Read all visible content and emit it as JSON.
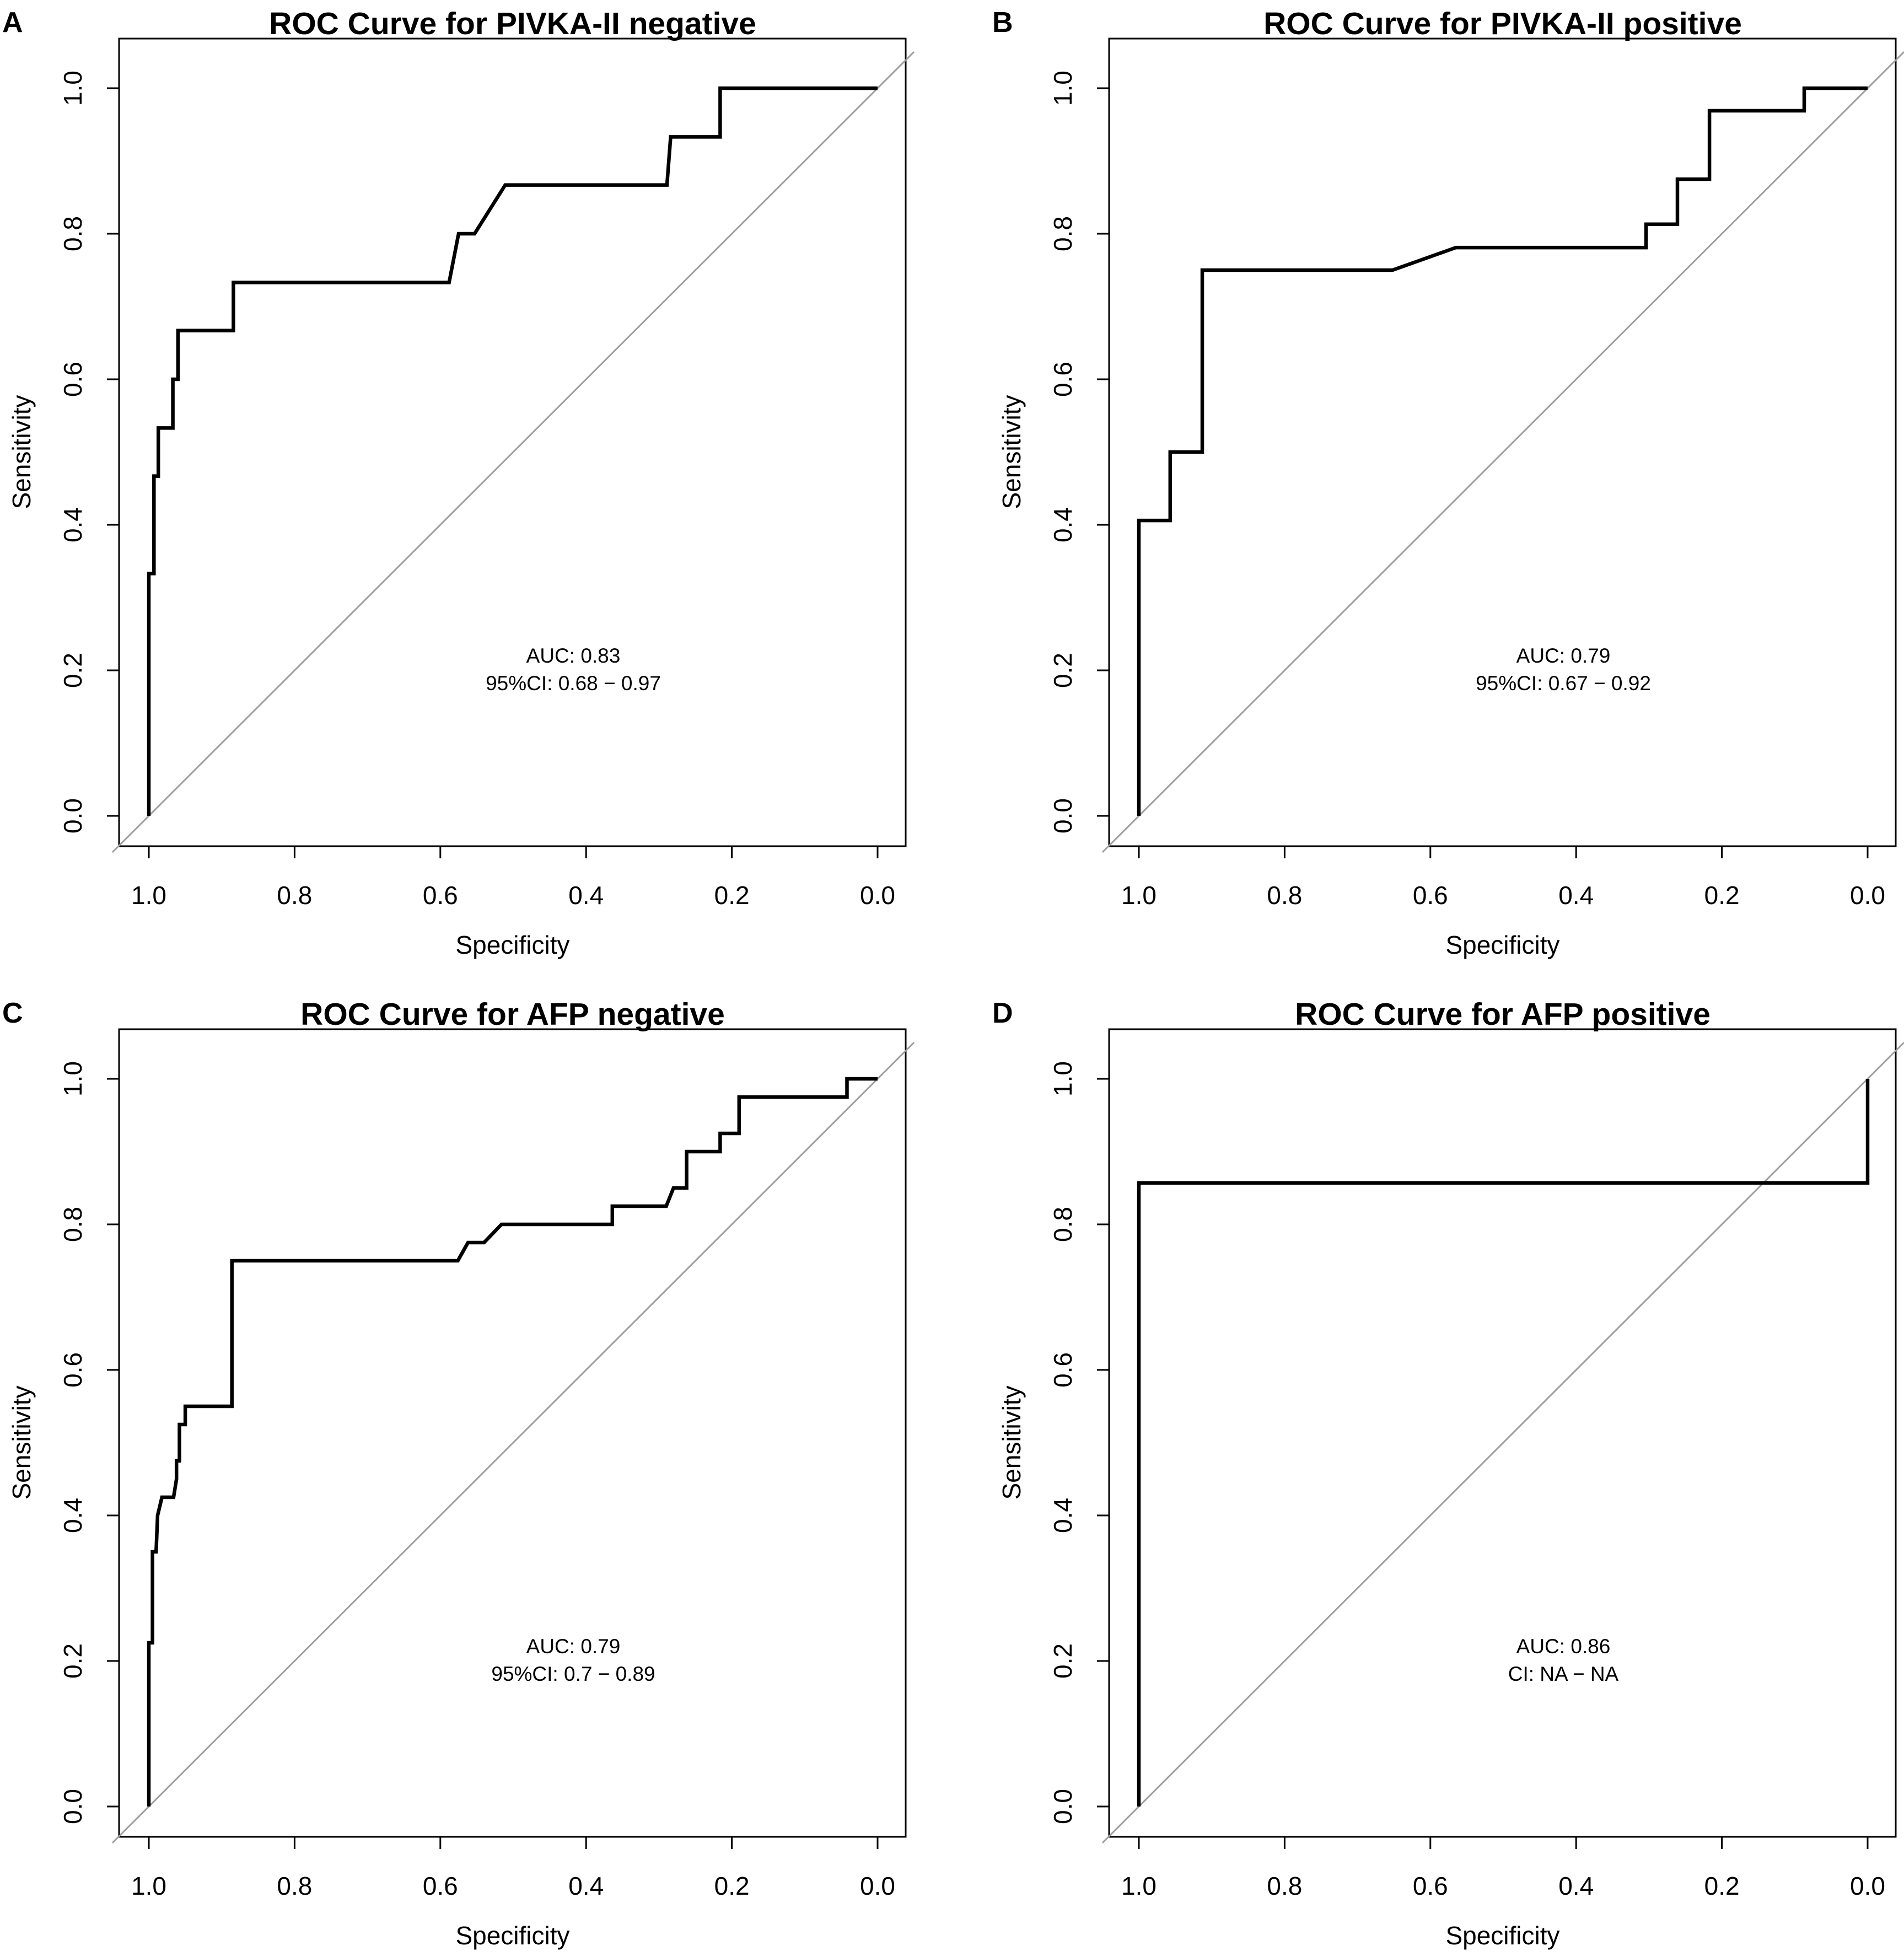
{
  "figure": {
    "panels": [
      {
        "letter": "A",
        "annotation": {
          "auc": "AUC: 0.83",
          "ci": "95%CI: 0.68 − 0.97"
        }
      },
      {
        "letter": "B",
        "annotation": {
          "auc": "AUC: 0.79",
          "ci": "95%CI: 0.67 − 0.92"
        }
      },
      {
        "letter": "C",
        "annotation": {
          "auc": "AUC: 0.79",
          "ci": "95%CI: 0.7 − 0.89"
        }
      },
      {
        "letter": "D",
        "annotation": {
          "auc": "AUC: 0.86",
          "ci": "CI: NA − NA"
        }
      }
    ]
  },
  "chart_data": [
    {
      "type": "line",
      "title": "ROC Curve for PIVKA-II negative",
      "xlabel": "Specificity",
      "ylabel": "Sensitivity",
      "xlim": [
        1.0,
        0.0
      ],
      "ylim": [
        0.0,
        1.0
      ],
      "x_reversed": true,
      "xticks": [
        "1.0",
        "0.8",
        "0.6",
        "0.4",
        "0.2",
        "0.0"
      ],
      "yticks": [
        "0.0",
        "0.2",
        "0.4",
        "0.6",
        "0.8",
        "1.0"
      ],
      "grid": false,
      "reference_line": "diagonal",
      "series": [
        {
          "name": "ROC",
          "specificity": [
            1.0,
            1.0,
            0.993,
            0.993,
            0.987,
            0.987,
            0.967,
            0.967,
            0.96,
            0.96,
            0.884,
            0.884,
            0.588,
            0.575,
            0.553,
            0.511,
            0.289,
            0.284,
            0.216,
            0.216,
            0.0
          ],
          "sensitivity": [
            0.0,
            0.333,
            0.333,
            0.467,
            0.467,
            0.533,
            0.533,
            0.6,
            0.6,
            0.667,
            0.667,
            0.733,
            0.733,
            0.8,
            0.8,
            0.867,
            0.867,
            0.933,
            0.933,
            1.0,
            1.0
          ]
        }
      ]
    },
    {
      "type": "line",
      "title": "ROC Curve for PIVKA-II positive",
      "xlabel": "Specificity",
      "ylabel": "Sensitivity",
      "xlim": [
        1.0,
        0.0
      ],
      "ylim": [
        0.0,
        1.0
      ],
      "x_reversed": true,
      "xticks": [
        "1.0",
        "0.8",
        "0.6",
        "0.4",
        "0.2",
        "0.0"
      ],
      "yticks": [
        "0.0",
        "0.2",
        "0.4",
        "0.6",
        "0.8",
        "1.0"
      ],
      "grid": false,
      "reference_line": "diagonal",
      "series": [
        {
          "name": "ROC",
          "specificity": [
            1.0,
            1.0,
            0.957,
            0.957,
            0.913,
            0.913,
            0.652,
            0.565,
            0.304,
            0.304,
            0.261,
            0.261,
            0.217,
            0.217,
            0.087,
            0.087,
            0.0
          ],
          "sensitivity": [
            0.0,
            0.406,
            0.406,
            0.5,
            0.5,
            0.75,
            0.75,
            0.781,
            0.781,
            0.813,
            0.813,
            0.875,
            0.875,
            0.969,
            0.969,
            1.0,
            1.0
          ]
        }
      ]
    },
    {
      "type": "line",
      "title": "ROC Curve for AFP negative",
      "xlabel": "Specificity",
      "ylabel": "Sensitivity",
      "xlim": [
        1.0,
        0.0
      ],
      "ylim": [
        0.0,
        1.0
      ],
      "x_reversed": true,
      "xticks": [
        "1.0",
        "0.8",
        "0.6",
        "0.4",
        "0.2",
        "0.0"
      ],
      "yticks": [
        "0.0",
        "0.2",
        "0.4",
        "0.6",
        "0.8",
        "1.0"
      ],
      "grid": false,
      "reference_line": "diagonal",
      "series": [
        {
          "name": "ROC",
          "specificity": [
            1.0,
            1.0,
            0.995,
            0.995,
            0.99,
            0.988,
            0.982,
            0.966,
            0.962,
            0.962,
            0.958,
            0.958,
            0.95,
            0.95,
            0.886,
            0.886,
            0.576,
            0.562,
            0.54,
            0.516,
            0.364,
            0.364,
            0.29,
            0.28,
            0.262,
            0.262,
            0.216,
            0.216,
            0.19,
            0.19,
            0.042,
            0.042,
            0.0
          ],
          "sensitivity": [
            0.0,
            0.225,
            0.225,
            0.35,
            0.35,
            0.4,
            0.425,
            0.425,
            0.45,
            0.475,
            0.475,
            0.525,
            0.525,
            0.55,
            0.55,
            0.75,
            0.75,
            0.775,
            0.775,
            0.8,
            0.8,
            0.825,
            0.825,
            0.85,
            0.85,
            0.9,
            0.9,
            0.925,
            0.925,
            0.975,
            0.975,
            1.0,
            1.0
          ]
        }
      ]
    },
    {
      "type": "line",
      "title": "ROC Curve for AFP positive",
      "xlabel": "Specificity",
      "ylabel": "Sensitivity",
      "xlim": [
        1.0,
        0.0
      ],
      "ylim": [
        0.0,
        1.0
      ],
      "x_reversed": true,
      "xticks": [
        "1.0",
        "0.8",
        "0.6",
        "0.4",
        "0.2",
        "0.0"
      ],
      "yticks": [
        "0.0",
        "0.2",
        "0.4",
        "0.6",
        "0.8",
        "1.0"
      ],
      "grid": false,
      "reference_line": "diagonal",
      "series": [
        {
          "name": "ROC",
          "specificity": [
            1.0,
            1.0,
            0.0,
            0.0
          ],
          "sensitivity": [
            0.0,
            0.857,
            0.857,
            1.0
          ]
        }
      ]
    }
  ],
  "colors": {
    "curve": "#000000",
    "reference": "#9e9e9e",
    "axes": "#000000",
    "background": "#ffffff"
  }
}
